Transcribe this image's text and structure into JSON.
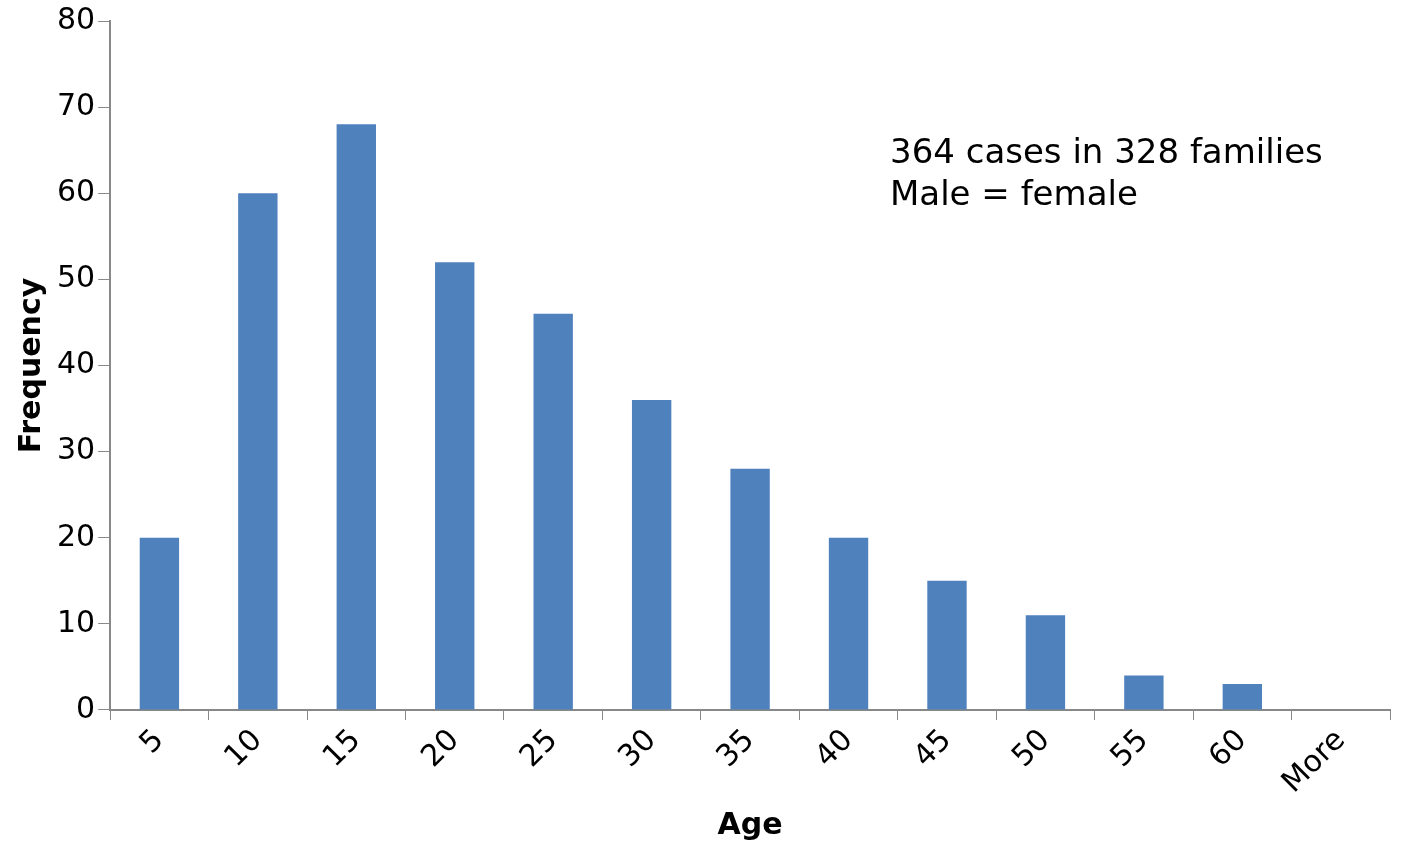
{
  "chart_data": {
    "type": "bar",
    "xlabel": "Age",
    "ylabel": "Frequency",
    "categories": [
      "5",
      "10",
      "15",
      "20",
      "25",
      "30",
      "35",
      "40",
      "45",
      "50",
      "55",
      "60",
      "More"
    ],
    "values": [
      20,
      60,
      68,
      52,
      46,
      36,
      28,
      20,
      15,
      11,
      4,
      3,
      0
    ],
    "color": "#4f81bd",
    "ylim": [
      0,
      80
    ],
    "yticks": [
      0,
      10,
      20,
      30,
      40,
      50,
      60,
      70,
      80
    ],
    "grid": false,
    "legend": false,
    "annotations": [
      "364 cases in 328 families",
      "Male = female"
    ]
  }
}
